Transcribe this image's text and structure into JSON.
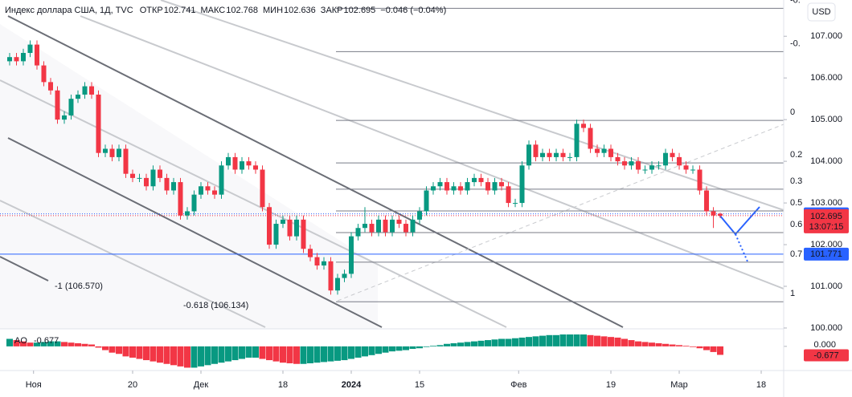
{
  "chart_data": {
    "type": "candlestick",
    "title": "Индекс доллара США, 1Д, TVC",
    "ohlc_labels": [
      "ОТКР",
      "МАКС",
      "МИН",
      "ЗАКР"
    ],
    "change": "−0.046 (−0.04%)",
    "currency": "USD",
    "countdown": "13:07:15",
    "up_color": "#089981",
    "down_color": "#f23645",
    "open": [
      106.4,
      106.5,
      106.4,
      106.6,
      106.8,
      106.3,
      105.9,
      105.7,
      105.0,
      105.1,
      105.5,
      105.6,
      105.8,
      105.6,
      104.2,
      104.3,
      104.1,
      104.3,
      103.7,
      103.6,
      103.6,
      103.4,
      103.8,
      103.6,
      103.3,
      103.5,
      102.7,
      102.8,
      103.2,
      103.4,
      103.3,
      103.2,
      103.9,
      104.1,
      103.8,
      104.0,
      103.9,
      103.8,
      102.9,
      102.0,
      102.5,
      102.6,
      102.2,
      102.6,
      101.9,
      101.7,
      101.5,
      101.6,
      100.9,
      101.2,
      101.3,
      102.2,
      102.4,
      102.5,
      102.3,
      102.6,
      102.3,
      102.6,
      102.5,
      102.3,
      102.6,
      102.8,
      103.3,
      103.4,
      103.5,
      103.3,
      103.4,
      103.3,
      103.5,
      103.6,
      103.5,
      103.3,
      103.5,
      103.4,
      103.0,
      103.0,
      103.9,
      104.4,
      104.1,
      104.2,
      104.1,
      104.2,
      104.1,
      104.1,
      104.9,
      104.8,
      104.3,
      104.2,
      104.3,
      104.1,
      104.0,
      103.9,
      104.0,
      103.8,
      103.8,
      103.9,
      103.9,
      104.2,
      104.1,
      103.9,
      103.8,
      103.8,
      103.3,
      102.8,
      102.741
    ],
    "high": [
      106.6,
      106.6,
      106.7,
      106.9,
      106.9,
      106.4,
      106.0,
      105.8,
      105.2,
      105.6,
      105.7,
      105.9,
      105.9,
      105.7,
      104.4,
      104.4,
      104.4,
      104.4,
      103.8,
      103.7,
      103.7,
      103.9,
      103.9,
      103.7,
      103.6,
      103.6,
      102.9,
      103.3,
      103.5,
      103.5,
      103.4,
      104.0,
      104.2,
      104.2,
      104.1,
      104.1,
      104.0,
      103.9,
      103.0,
      102.6,
      102.7,
      102.7,
      102.7,
      102.7,
      102.0,
      101.8,
      101.7,
      101.7,
      101.3,
      101.4,
      102.3,
      102.5,
      102.9,
      102.6,
      102.7,
      102.7,
      102.7,
      102.7,
      102.6,
      102.7,
      102.9,
      103.4,
      103.5,
      103.6,
      103.6,
      103.5,
      103.5,
      103.6,
      103.7,
      103.7,
      103.6,
      103.6,
      103.6,
      103.5,
      103.1,
      104.0,
      104.5,
      104.5,
      104.3,
      104.3,
      104.3,
      104.3,
      104.2,
      105.0,
      105.0,
      104.9,
      104.4,
      104.4,
      104.4,
      104.2,
      104.1,
      104.1,
      104.1,
      103.9,
      104.0,
      104.0,
      104.3,
      104.3,
      104.2,
      104.0,
      103.9,
      103.9,
      103.4,
      102.9,
      102.768
    ],
    "low": [
      106.3,
      106.3,
      106.3,
      106.5,
      106.2,
      105.8,
      105.6,
      104.9,
      104.9,
      105.0,
      105.4,
      105.5,
      105.5,
      104.1,
      104.1,
      104.0,
      104.0,
      103.6,
      103.5,
      103.5,
      103.3,
      103.3,
      103.5,
      103.2,
      103.2,
      102.6,
      102.6,
      102.7,
      103.1,
      103.2,
      103.1,
      103.1,
      103.8,
      103.7,
      103.7,
      103.8,
      103.7,
      102.8,
      101.9,
      101.9,
      102.4,
      102.1,
      102.1,
      101.8,
      101.6,
      101.4,
      101.4,
      100.8,
      100.8,
      101.1,
      101.2,
      102.1,
      102.3,
      102.2,
      102.2,
      102.2,
      102.2,
      102.4,
      102.2,
      102.2,
      102.5,
      102.7,
      103.2,
      103.3,
      103.2,
      103.2,
      103.2,
      103.2,
      103.4,
      103.4,
      103.2,
      103.2,
      103.3,
      102.9,
      102.9,
      102.9,
      103.8,
      104.0,
      104.0,
      104.0,
      104.0,
      104.0,
      104.0,
      104.0,
      104.7,
      104.2,
      104.1,
      104.1,
      104.0,
      103.9,
      103.8,
      103.8,
      103.7,
      103.7,
      103.7,
      103.8,
      103.8,
      104.0,
      103.8,
      103.7,
      103.7,
      103.2,
      102.7,
      102.4,
      102.636
    ],
    "close": [
      106.5,
      106.4,
      106.6,
      106.8,
      106.3,
      105.9,
      105.7,
      105.0,
      105.1,
      105.5,
      105.6,
      105.8,
      105.6,
      104.2,
      104.3,
      104.1,
      104.3,
      103.7,
      103.6,
      103.6,
      103.4,
      103.8,
      103.6,
      103.3,
      103.5,
      102.7,
      102.8,
      103.2,
      103.4,
      103.3,
      103.2,
      103.9,
      104.1,
      103.8,
      104.0,
      103.9,
      103.8,
      102.9,
      102.0,
      102.5,
      102.6,
      102.2,
      102.6,
      101.9,
      101.7,
      101.5,
      101.6,
      100.9,
      101.2,
      101.3,
      102.2,
      102.4,
      102.5,
      102.3,
      102.6,
      102.3,
      102.6,
      102.5,
      102.3,
      102.6,
      102.8,
      103.3,
      103.4,
      103.5,
      103.3,
      103.4,
      103.3,
      103.5,
      103.6,
      103.5,
      103.3,
      103.5,
      103.4,
      103.0,
      103.0,
      103.9,
      104.4,
      104.1,
      104.2,
      104.1,
      104.2,
      104.1,
      104.1,
      104.9,
      104.8,
      104.3,
      104.2,
      104.3,
      104.1,
      104.0,
      103.9,
      104.0,
      103.8,
      103.8,
      103.9,
      103.9,
      104.2,
      104.1,
      103.9,
      103.8,
      103.8,
      103.3,
      102.8,
      102.7,
      102.695
    ],
    "ylim": [
      99.98,
      107.87
    ],
    "yticks": [
      {
        "value": 100,
        "label": "100.000"
      },
      {
        "value": 101,
        "label": "101.000"
      },
      {
        "value": 102,
        "label": "102.000"
      },
      {
        "value": 103,
        "label": "103.000"
      },
      {
        "value": 104,
        "label": "104.000"
      },
      {
        "value": 105,
        "label": "105.000"
      },
      {
        "value": 106,
        "label": "106.000"
      },
      {
        "value": 107,
        "label": "107.000"
      }
    ],
    "xlim": [
      -1.41,
      113.29
    ],
    "xticks": [
      {
        "value": 3.5,
        "label": "Ноя"
      },
      {
        "value": 18,
        "label": "20"
      },
      {
        "value": 28,
        "label": "Дек"
      },
      {
        "value": 40,
        "label": "18"
      },
      {
        "value": 50,
        "label": "2024"
      },
      {
        "value": 60,
        "label": "15"
      },
      {
        "value": 74.5,
        "label": "Фев"
      },
      {
        "value": 88,
        "label": "19"
      },
      {
        "value": 98,
        "label": "Мар"
      },
      {
        "value": 110,
        "label": "18"
      }
    ],
    "levels": [
      {
        "value": 102.739,
        "color": "#2962ff"
      },
      {
        "value": 101.771,
        "color": "#2962ff"
      }
    ],
    "fib_levels": [
      {
        "level": "-0.",
        "price": 107.67
      },
      {
        "level": "-0.",
        "price": 106.63
      },
      {
        "level": "0",
        "price": 104.98
      },
      {
        "level": "0.2",
        "price": 103.96
      },
      {
        "level": "0.3",
        "price": 103.33
      },
      {
        "level": "0.5",
        "price": 102.81
      },
      {
        "level": "0.6",
        "price": 102.29
      },
      {
        "level": "0.7",
        "price": 101.58
      },
      {
        "level": "1",
        "price": 100.63
      }
    ],
    "annotations": [
      "-1 (106.570)",
      "-0.618 (106.134)"
    ],
    "ao": {
      "name": "AO",
      "values": [
        0.6,
        0.5,
        0.4,
        0.3,
        0.3,
        0.35,
        0.4,
        0.4,
        0.35,
        0.3,
        0.25,
        0.2,
        0.15,
        -0.1,
        -0.3,
        -0.5,
        -0.6,
        -0.8,
        -0.9,
        -1.0,
        -1.1,
        -1.2,
        -1.3,
        -1.4,
        -1.5,
        -1.6,
        -1.7,
        -1.7,
        -1.6,
        -1.5,
        -1.4,
        -1.3,
        -1.2,
        -1.1,
        -1.0,
        -0.9,
        -0.9,
        -1.0,
        -1.1,
        -1.2,
        -1.3,
        -1.35,
        -1.4,
        -1.4,
        -1.35,
        -1.3,
        -1.25,
        -1.2,
        -1.15,
        -1.1,
        -1.0,
        -0.9,
        -0.8,
        -0.7,
        -0.6,
        -0.5,
        -0.4,
        -0.35,
        -0.3,
        -0.2,
        -0.15,
        -0.05,
        0.05,
        0.1,
        0.2,
        0.25,
        0.3,
        0.35,
        0.4,
        0.45,
        0.5,
        0.55,
        0.6,
        0.6,
        0.65,
        0.7,
        0.75,
        0.8,
        0.85,
        0.9,
        0.9,
        0.95,
        0.95,
        0.95,
        0.95,
        0.9,
        0.85,
        0.8,
        0.75,
        0.7,
        0.6,
        0.5,
        0.4,
        0.35,
        0.3,
        0.25,
        0.2,
        0.15,
        0.1,
        0.05,
        -0.05,
        -0.15,
        -0.3,
        -0.45,
        -0.677
      ],
      "ylim": [
        -1.8,
        1.4
      ],
      "yticks": [
        {
          "value": 0,
          "label": "0.000"
        }
      ]
    }
  }
}
